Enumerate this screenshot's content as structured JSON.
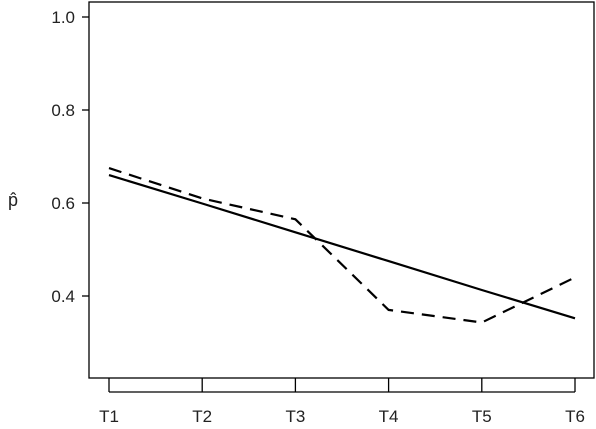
{
  "chart_data": {
    "type": "line",
    "title": "",
    "xlabel": "",
    "ylabel": "p̂",
    "categories": [
      "T1",
      "T2",
      "T3",
      "T4",
      "T5",
      "T6"
    ],
    "ylim": [
      0.35,
      1.0
    ],
    "yticks": [
      0.4,
      0.6,
      0.8,
      1.0
    ],
    "ytick_labels": [
      "0.4",
      "0.6",
      "0.8",
      "1.0"
    ],
    "grid": false,
    "series": [
      {
        "style": "solid",
        "color": "#000000",
        "values": [
          0.66,
          0.599,
          0.537,
          0.475,
          0.413,
          0.352
        ]
      },
      {
        "style": "dashed",
        "color": "#000000",
        "values": [
          0.675,
          0.61,
          0.565,
          0.37,
          0.343,
          0.44
        ]
      }
    ]
  }
}
